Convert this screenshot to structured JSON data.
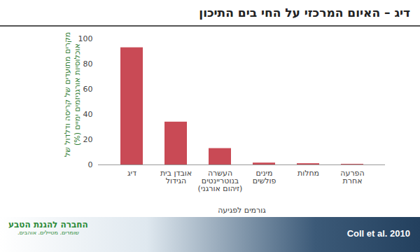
{
  "chart_data": {
    "type": "bar",
    "title": "דיג – האיום המרכזי על החי בים התיכון",
    "y_label": "מקרים מתועדים של קריסה ודלדול של\nאוכלוסיות אורגניזמים ימיים (%)",
    "x_label": "גורמים לפגיעה",
    "categories": [
      "דיג",
      "אובדן בית\nהגידול",
      "העשרה\nבנוטריינטים\n(זיהום אורגני)",
      "מינים\nפולשים",
      "מחלות",
      "הפרעה\nאחרת"
    ],
    "values": [
      93,
      34,
      13,
      1.5,
      1,
      0.5
    ],
    "color": "#c94a55",
    "ylim": [
      0,
      100
    ],
    "yticks": [
      0,
      20,
      40,
      60,
      80,
      100
    ],
    "grid": false,
    "source": "Coll et al. 2010",
    "logo_text": "החברה להגנת הטבע",
    "logo_tagline": "שומרים. מטיילים. אוהבים."
  }
}
